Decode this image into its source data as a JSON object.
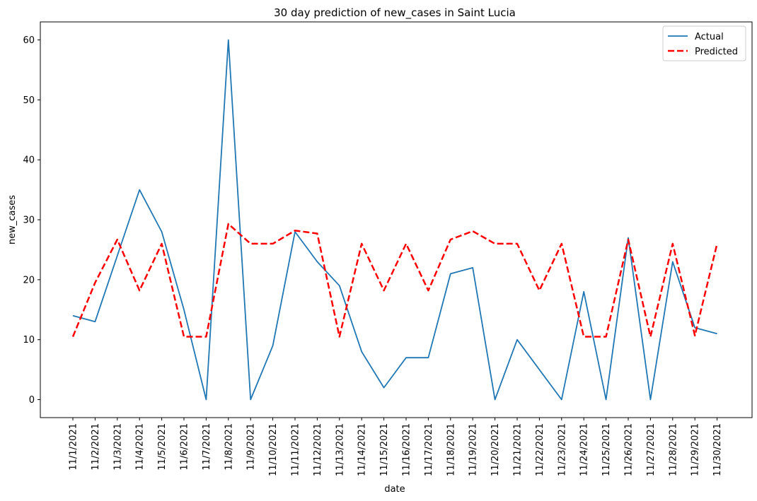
{
  "chart_data": {
    "type": "line",
    "title": "30 day prediction of new_cases in Saint Lucia",
    "xlabel": "date",
    "ylabel": "new_cases",
    "ylim": [
      -3,
      63
    ],
    "yticks": [
      0,
      10,
      20,
      30,
      40,
      50,
      60
    ],
    "categories": [
      "11/1/2021",
      "11/2/2021",
      "11/3/2021",
      "11/4/2021",
      "11/5/2021",
      "11/6/2021",
      "11/7/2021",
      "11/8/2021",
      "11/9/2021",
      "11/10/2021",
      "11/11/2021",
      "11/12/2021",
      "11/13/2021",
      "11/14/2021",
      "11/15/2021",
      "11/16/2021",
      "11/17/2021",
      "11/18/2021",
      "11/19/2021",
      "11/20/2021",
      "11/21/2021",
      "11/22/2021",
      "11/23/2021",
      "11/24/2021",
      "11/25/2021",
      "11/26/2021",
      "11/27/2021",
      "11/28/2021",
      "11/29/2021",
      "11/30/2021"
    ],
    "grid": false,
    "legend_position": "top-right",
    "series": [
      {
        "name": "Actual",
        "color": "#1f77b4",
        "style": "solid",
        "values": [
          14,
          13,
          24,
          35,
          28,
          15,
          0,
          60,
          0,
          9,
          28,
          23,
          19,
          8,
          2,
          7,
          7,
          21,
          22,
          0,
          10,
          5,
          0,
          18,
          0,
          27,
          0,
          23,
          12,
          11
        ]
      },
      {
        "name": "Predicted",
        "color": "#ff0000",
        "style": "dashed",
        "values": [
          10.5,
          19.5,
          26.7,
          18.2,
          26,
          10.5,
          10.5,
          29.3,
          26,
          26,
          28.2,
          27.7,
          10.5,
          26,
          18.2,
          26,
          18.2,
          26.7,
          28.1,
          26,
          26,
          18.2,
          26,
          10.5,
          10.5,
          26.7,
          10.5,
          26,
          10.7,
          26
        ]
      }
    ]
  }
}
